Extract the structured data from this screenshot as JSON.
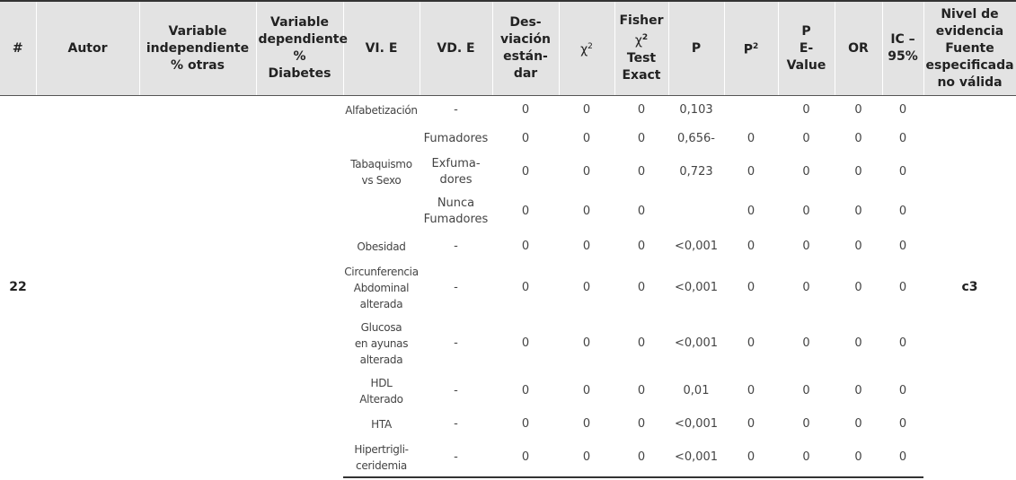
{
  "headers": {
    "num": "#",
    "autor": "Autor",
    "vi_line1": "Variable",
    "vi_line2": "independiente",
    "vi_line3": "% otras",
    "vd_line1": "Variable",
    "vd_line2": "dependiente",
    "vd_line3": "%",
    "vd_line4": "Diabetes",
    "vie": "VI. E",
    "vde": "VD. E",
    "desv_line1": "Des-",
    "desv_line2": "viación",
    "desv_line3": "están-",
    "desv_line4": "dar",
    "chi": "χ",
    "chi_sup": "2",
    "fisher_line1": "Fisher",
    "fisher_chi": "χ",
    "fisher_chi_sup": "2",
    "fisher_line3": "Test",
    "fisher_line4": "Exact",
    "p": "P",
    "p2": "P",
    "p2_sup": "2",
    "pe_line1": "P",
    "pe_line2": "E-Value",
    "or": "OR",
    "ic_line1": "IC –",
    "ic_line2": "95%",
    "nivel_line1": "Nivel de",
    "nivel_line2": "evidencia",
    "nivel_line3": "Fuente",
    "nivel_line4": "especificada",
    "nivel_line5": "no válida"
  },
  "group": {
    "num": "22",
    "nivel": "c3"
  },
  "rows": [
    {
      "vie": [
        "Alfabetización"
      ],
      "vde": [
        "-"
      ],
      "desv": "0",
      "chi": "0",
      "fisher": "0",
      "p": "0,103",
      "p2": "",
      "pe": "0",
      "or": "0",
      "ic": "0"
    },
    {
      "vie": [],
      "vde": [
        "Fumadores"
      ],
      "desv": "0",
      "chi": "0",
      "fisher": "0",
      "p": "0,656-",
      "p2": "0",
      "pe": "0",
      "or": "0",
      "ic": "0"
    },
    {
      "vie": [
        "Tabaquismo",
        "vs Sexo"
      ],
      "vde": [
        "Exfuma-",
        "dores"
      ],
      "desv": "0",
      "chi": "0",
      "fisher": "0",
      "p": "0,723",
      "p2": "0",
      "pe": "0",
      "or": "0",
      "ic": "0"
    },
    {
      "vie": [],
      "vde": [
        "Nunca",
        "Fumadores"
      ],
      "desv": "0",
      "chi": "0",
      "fisher": "0",
      "p": "",
      "p2": "0",
      "pe": "0",
      "or": "0",
      "ic": "0"
    },
    {
      "vie": [
        "Obesidad"
      ],
      "vde": [
        "-"
      ],
      "desv": "0",
      "chi": "0",
      "fisher": "0",
      "p": "<0,001",
      "p2": "0",
      "pe": "0",
      "or": "0",
      "ic": "0"
    },
    {
      "vie": [
        "Circunferencia",
        "Abdominal",
        "alterada"
      ],
      "vde": [
        "-"
      ],
      "desv": "0",
      "chi": "0",
      "fisher": "0",
      "p": "<0,001",
      "p2": "0",
      "pe": "0",
      "or": "0",
      "ic": "0"
    },
    {
      "vie": [
        "Glucosa",
        "en ayunas",
        "alterada"
      ],
      "vde": [
        "-"
      ],
      "desv": "0",
      "chi": "0",
      "fisher": "0",
      "p": "<0,001",
      "p2": "0",
      "pe": "0",
      "or": "0",
      "ic": "0"
    },
    {
      "vie": [
        "HDL",
        "Alterado"
      ],
      "vde": [
        "-"
      ],
      "desv": "0",
      "chi": "0",
      "fisher": "0",
      "p": "0,01",
      "p2": "0",
      "pe": "0",
      "or": "0",
      "ic": "0"
    },
    {
      "vie": [
        "HTA"
      ],
      "vde": [
        "-"
      ],
      "desv": "0",
      "chi": "0",
      "fisher": "0",
      "p": "<0,001",
      "p2": "0",
      "pe": "0",
      "or": "0",
      "ic": "0"
    },
    {
      "vie": [
        "Hipertrigli-",
        "ceridemia"
      ],
      "vde": [
        "-"
      ],
      "desv": "0",
      "chi": "0",
      "fisher": "0",
      "p": "<0,001",
      "p2": "0",
      "pe": "0",
      "or": "0",
      "ic": "0"
    }
  ]
}
